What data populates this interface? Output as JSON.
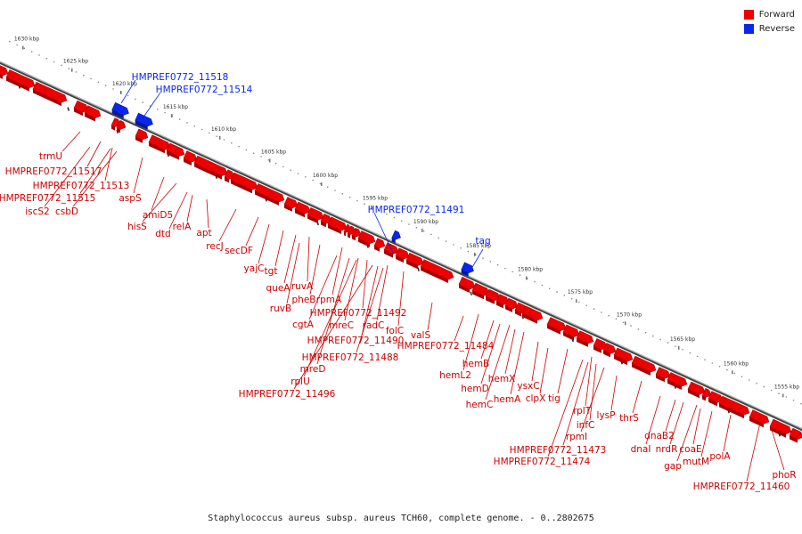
{
  "colors": {
    "forward": "#ee0000",
    "reverse": "#0a26ee",
    "axis": "#7a7a7a"
  },
  "legend": {
    "forward": {
      "label": "Forward",
      "color": "#ee0000"
    },
    "reverse": {
      "label": "Reverse",
      "color": "#0a26ee"
    }
  },
  "caption": "Staphylococcus aureus subsp. aureus TCH60, complete genome. - 0..2802675",
  "ticks": [
    "1630 kbp",
    "1625 kbp",
    "1620 kbp",
    "1615 kbp",
    "1610 kbp",
    "1605 kbp",
    "1600 kbp",
    "1595 kbp",
    "1590 kbp",
    "1585 kbp",
    "1580 kbp",
    "1575 kbp",
    "1570 kbp",
    "1565 kbp",
    "1560 kbp",
    "1555 kbp"
  ],
  "reverse_labels": [
    "HMPREF0772_11518",
    "HMPREF0772_11514",
    "HMPREF0772_11491",
    "tag"
  ],
  "forward_labels": [
    "trmU",
    "HMPREF0772_11517",
    "HMPREF0772_11513",
    "HMPREF0772_11515",
    "iscS2",
    "csbD",
    "aspS",
    "amiD5",
    "hisS",
    "dtd",
    "relA",
    "apt",
    "recJ",
    "secDF",
    "yajC",
    "tgt",
    "queA",
    "ruvA",
    "ruvB",
    "pheB",
    "rpmA",
    "cgtA",
    "mreC",
    "HMPREF0772_11492",
    "radC",
    "folC",
    "valS",
    "HMPREF0772_11490",
    "HMPREF0772_11488",
    "mreD",
    "rplU",
    "HMPREF0772_11496",
    "HMPREF0772_11484",
    "hemB",
    "hemL2",
    "hemD",
    "hemX",
    "hemC",
    "hemA",
    "ysxC",
    "clpX",
    "tig",
    "rplT",
    "infC",
    "rpmI",
    "lysP",
    "thrS",
    "HMPREF0772_11473",
    "HMPREF0772_11474",
    "dnaI",
    "dnaB2",
    "nrdR",
    "coaE",
    "gap",
    "mutM",
    "polA",
    "HMPREF0772_11460",
    "phoR"
  ]
}
